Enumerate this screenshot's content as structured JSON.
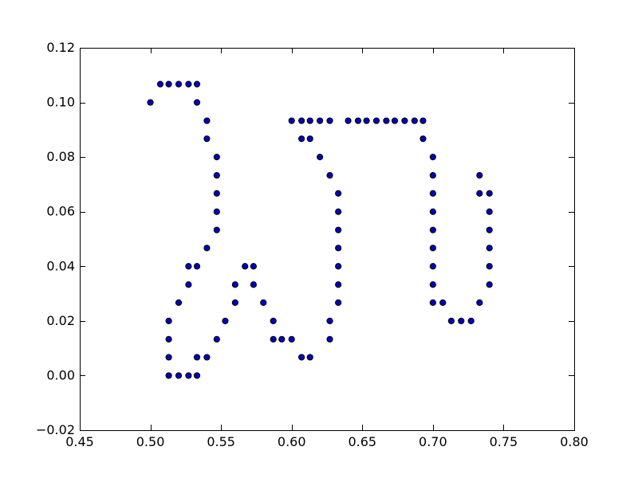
{
  "chart_data": {
    "type": "scatter",
    "title": "",
    "xlabel": "",
    "ylabel": "",
    "xlim": [
      0.45,
      0.8
    ],
    "ylim": [
      -0.02,
      0.12
    ],
    "grid": false,
    "x_ticks": [
      0.45,
      0.5,
      0.55,
      0.6,
      0.65,
      0.7,
      0.75,
      0.8
    ],
    "x_tick_labels": [
      "0.45",
      "0.50",
      "0.55",
      "0.60",
      "0.65",
      "0.70",
      "0.75",
      "0.80"
    ],
    "y_ticks": [
      -0.02,
      0.0,
      0.02,
      0.04,
      0.06,
      0.08,
      0.1,
      0.12
    ],
    "y_tick_labels": [
      "−0.02",
      "0.00",
      "0.02",
      "0.04",
      "0.06",
      "0.08",
      "0.10",
      "0.12"
    ],
    "marker_color": "#0000bf",
    "points": [
      [
        0.5,
        0.1
      ],
      [
        0.507,
        0.1067
      ],
      [
        0.513,
        0.1067
      ],
      [
        0.52,
        0.1067
      ],
      [
        0.527,
        0.1067
      ],
      [
        0.533,
        0.1067
      ],
      [
        0.533,
        0.1
      ],
      [
        0.54,
        0.0933
      ],
      [
        0.54,
        0.0867
      ],
      [
        0.547,
        0.08
      ],
      [
        0.547,
        0.0733
      ],
      [
        0.547,
        0.0667
      ],
      [
        0.547,
        0.06
      ],
      [
        0.547,
        0.0533
      ],
      [
        0.54,
        0.0467
      ],
      [
        0.527,
        0.04
      ],
      [
        0.533,
        0.04
      ],
      [
        0.527,
        0.0333
      ],
      [
        0.52,
        0.0267
      ],
      [
        0.513,
        0.02
      ],
      [
        0.513,
        0.0133
      ],
      [
        0.513,
        0.0067
      ],
      [
        0.513,
        0.0
      ],
      [
        0.52,
        0.0
      ],
      [
        0.527,
        0.0
      ],
      [
        0.533,
        0.0
      ],
      [
        0.533,
        0.0067
      ],
      [
        0.54,
        0.0067
      ],
      [
        0.547,
        0.0133
      ],
      [
        0.553,
        0.02
      ],
      [
        0.56,
        0.0267
      ],
      [
        0.56,
        0.0333
      ],
      [
        0.567,
        0.04
      ],
      [
        0.573,
        0.04
      ],
      [
        0.573,
        0.0333
      ],
      [
        0.58,
        0.0267
      ],
      [
        0.587,
        0.02
      ],
      [
        0.587,
        0.0133
      ],
      [
        0.593,
        0.0133
      ],
      [
        0.6,
        0.0133
      ],
      [
        0.607,
        0.0067
      ],
      [
        0.613,
        0.0067
      ],
      [
        0.627,
        0.0133
      ],
      [
        0.627,
        0.02
      ],
      [
        0.633,
        0.0267
      ],
      [
        0.633,
        0.0333
      ],
      [
        0.633,
        0.04
      ],
      [
        0.633,
        0.0467
      ],
      [
        0.633,
        0.0533
      ],
      [
        0.633,
        0.06
      ],
      [
        0.633,
        0.0667
      ],
      [
        0.627,
        0.0733
      ],
      [
        0.62,
        0.08
      ],
      [
        0.607,
        0.0867
      ],
      [
        0.613,
        0.0867
      ],
      [
        0.6,
        0.0933
      ],
      [
        0.607,
        0.0933
      ],
      [
        0.613,
        0.0933
      ],
      [
        0.62,
        0.0933
      ],
      [
        0.627,
        0.0933
      ],
      [
        0.64,
        0.0933
      ],
      [
        0.647,
        0.0933
      ],
      [
        0.653,
        0.0933
      ],
      [
        0.66,
        0.0933
      ],
      [
        0.667,
        0.0933
      ],
      [
        0.673,
        0.0933
      ],
      [
        0.68,
        0.0933
      ],
      [
        0.687,
        0.0933
      ],
      [
        0.693,
        0.0933
      ],
      [
        0.693,
        0.0867
      ],
      [
        0.7,
        0.08
      ],
      [
        0.7,
        0.0733
      ],
      [
        0.7,
        0.0667
      ],
      [
        0.7,
        0.06
      ],
      [
        0.7,
        0.0533
      ],
      [
        0.7,
        0.0467
      ],
      [
        0.7,
        0.04
      ],
      [
        0.7,
        0.0333
      ],
      [
        0.7,
        0.0267
      ],
      [
        0.707,
        0.0267
      ],
      [
        0.713,
        0.02
      ],
      [
        0.72,
        0.02
      ],
      [
        0.727,
        0.02
      ],
      [
        0.733,
        0.0267
      ],
      [
        0.74,
        0.0333
      ],
      [
        0.74,
        0.04
      ],
      [
        0.74,
        0.0467
      ],
      [
        0.74,
        0.0533
      ],
      [
        0.74,
        0.06
      ],
      [
        0.74,
        0.0667
      ],
      [
        0.733,
        0.0667
      ],
      [
        0.733,
        0.0733
      ]
    ]
  }
}
